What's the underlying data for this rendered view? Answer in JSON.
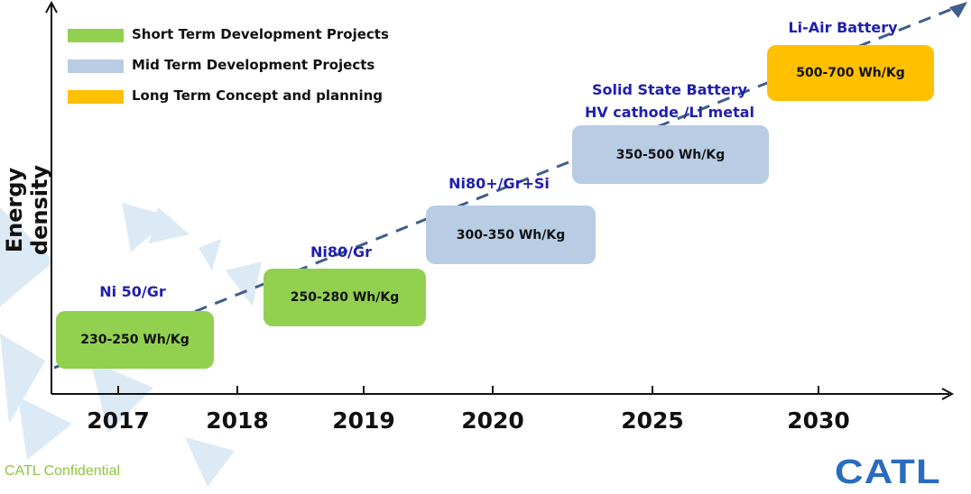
{
  "axis": {
    "y_label": "Energy density",
    "years": [
      "2017",
      "2018",
      "2019",
      "2020",
      "2025",
      "2030"
    ]
  },
  "legend": [
    {
      "label": "Short Term Development Projects",
      "color": "#92d050"
    },
    {
      "label": "Mid Term Development Projects",
      "color": "#b8cce4"
    },
    {
      "label": "Long Term Concept and planning",
      "color": "#ffc000"
    }
  ],
  "milestones": [
    {
      "caption": "Ni 50/Gr",
      "value": "230-250 Wh/Kg",
      "color": "#92d050"
    },
    {
      "caption": "Ni80/Gr",
      "value": "250-280 Wh/Kg",
      "color": "#92d050"
    },
    {
      "caption": "Ni80+/Gr+Si",
      "value": "300-350 Wh/Kg",
      "color": "#b8cce4"
    },
    {
      "caption": "Solid State Battery",
      "caption2": "HV cathode /Li metal",
      "value": "350-500 Wh/Kg",
      "color": "#b8cce4"
    },
    {
      "caption": "Li-Air Battery",
      "value": "500-700 Wh/Kg",
      "color": "#ffc000"
    }
  ],
  "footer": {
    "confidential": "CATL Confidential",
    "logo": "CATL"
  }
}
